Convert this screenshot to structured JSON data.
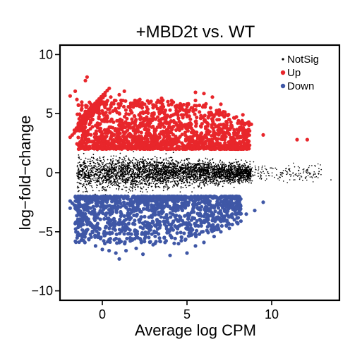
{
  "chart_data": {
    "type": "scatter",
    "title": "+MBD2t vs. WT",
    "xlabel": "Average log CPM",
    "ylabel": "log−fold−change",
    "xlim": [
      -2.5,
      14
    ],
    "ylim": [
      -10.8,
      10.8
    ],
    "xticks": [
      0,
      5,
      10
    ],
    "yticks": [
      10,
      5,
      0,
      -5,
      -10
    ],
    "xtick_labels": [
      "0",
      "5",
      "10"
    ],
    "ytick_labels": [
      "10",
      "5",
      "0",
      "−5",
      "−10"
    ],
    "grid": false,
    "legend": {
      "placement": "top-right",
      "entries": [
        {
          "label": "NotSig",
          "color": "#000000"
        },
        {
          "label": "Up",
          "color": "#e8262b"
        },
        {
          "label": "Down",
          "color": "#3f57a6"
        }
      ]
    },
    "series": [
      {
        "name": "NotSig",
        "color": "#000000",
        "description_range": {
          "x": [
            -1.5,
            13.5
          ],
          "y": [
            -1.9,
            1.9
          ]
        },
        "x": [
          -1.4,
          -1.0,
          -0.5,
          0.0,
          0.5,
          1.0,
          1.5,
          2.0,
          2.5,
          3.0,
          3.5,
          4.0,
          4.5,
          5.0,
          5.5,
          6.0,
          6.5,
          7.0,
          7.5,
          8.0,
          8.5,
          9.0,
          9.5,
          10.0,
          10.5,
          11.0,
          11.6,
          12.2,
          12.8,
          13.5
        ],
        "y": [
          1.5,
          -1.6,
          1.2,
          -1.3,
          1.0,
          -0.9,
          0.8,
          -0.7,
          0.6,
          -0.5,
          0.4,
          -0.3,
          0.3,
          -0.2,
          0.2,
          -0.1,
          0.1,
          0.0,
          0.3,
          -0.3,
          0.2,
          -0.2,
          0.1,
          0.4,
          -0.4,
          0.3,
          0.2,
          0.0,
          0.1,
          -0.6
        ]
      },
      {
        "name": "Up",
        "color": "#e8262b",
        "x": [
          -1.9,
          -1.6,
          -1.5,
          -1.0,
          -0.9,
          -1.2,
          -0.5,
          -0.2,
          0.5,
          1.0,
          1.3,
          2.0,
          2.5,
          3.0,
          3.5,
          4.0,
          4.4,
          5.0,
          5.5,
          6.0,
          6.5,
          7.0,
          7.5,
          8.0,
          8.3,
          8.8,
          9.5,
          11.5,
          12.1
        ],
        "y": [
          6.5,
          6.9,
          6.2,
          7.8,
          8.1,
          5.7,
          5.4,
          6.1,
          6.4,
          6.6,
          6.9,
          6.0,
          5.8,
          5.5,
          6.3,
          5.3,
          5.1,
          5.6,
          6.8,
          6.7,
          6.4,
          5.8,
          4.5,
          4.2,
          4.9,
          4.1,
          3.2,
          2.8,
          2.8
        ]
      },
      {
        "name": "Down",
        "color": "#3f57a6",
        "x": [
          -1.9,
          -1.6,
          -1.2,
          -0.8,
          -0.4,
          0.0,
          0.4,
          0.8,
          1.0,
          1.4,
          2.0,
          2.4,
          3.0,
          3.4,
          4.0,
          4.5,
          5.0,
          5.5,
          6.0,
          6.6,
          7.0,
          7.5,
          8.0,
          8.5,
          9.0,
          9.5
        ],
        "y": [
          -3.0,
          -4.3,
          -5.3,
          -5.6,
          -6.2,
          -6.5,
          -6.6,
          -6.8,
          -7.3,
          -6.6,
          -6.4,
          -6.9,
          -6.1,
          -5.8,
          -7.0,
          -6.0,
          -6.8,
          -6.2,
          -5.9,
          -5.4,
          -5.0,
          -4.7,
          -4.3,
          -3.5,
          -3.2,
          -2.5
        ]
      }
    ]
  }
}
